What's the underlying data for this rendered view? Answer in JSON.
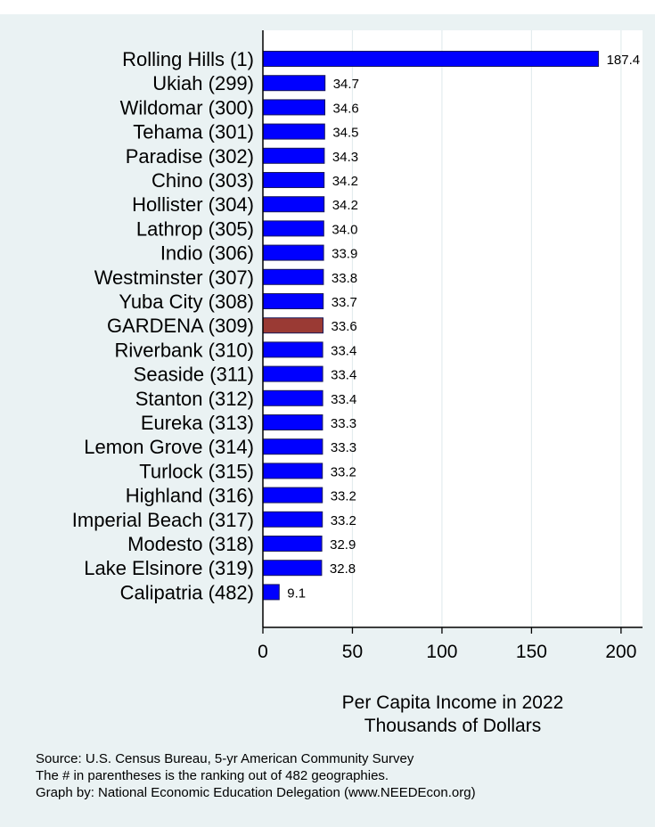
{
  "chart_data": {
    "type": "bar",
    "orientation": "horizontal",
    "categories": [
      "Rolling Hills  (1)",
      "Ukiah (299)",
      "Wildomar (300)",
      "Tehama (301)",
      "Paradise (302)",
      "Chino (303)",
      "Hollister (304)",
      "Lathrop (305)",
      "Indio (306)",
      "Westminster (307)",
      "Yuba City (308)",
      "GARDENA (309)",
      "Riverbank (310)",
      "Seaside (311)",
      "Stanton (312)",
      "Eureka (313)",
      "Lemon Grove (314)",
      "Turlock (315)",
      "Highland (316)",
      "Imperial Beach (317)",
      "Modesto (318)",
      "Lake Elsinore (319)",
      "Calipatria (482)"
    ],
    "values": [
      187.4,
      34.7,
      34.6,
      34.5,
      34.3,
      34.2,
      34.2,
      34.0,
      33.9,
      33.8,
      33.7,
      33.6,
      33.4,
      33.4,
      33.4,
      33.3,
      33.3,
      33.2,
      33.2,
      33.2,
      32.9,
      32.8,
      9.1
    ],
    "value_labels": [
      "187.4",
      "34.7",
      "34.6",
      "34.5",
      "34.3",
      "34.2",
      "34.2",
      "34.0",
      "33.9",
      "33.8",
      "33.7",
      "33.6",
      "33.4",
      "33.4",
      "33.4",
      "33.3",
      "33.3",
      "33.2",
      "33.2",
      "33.2",
      "32.9",
      "32.8",
      "9.1"
    ],
    "highlight_index": 11,
    "xticks": [
      0,
      50,
      100,
      150,
      200
    ],
    "xlim": [
      0,
      212
    ],
    "xlabel_lines": [
      "Per Capita Income in 2022",
      "Thousands of Dollars"
    ],
    "grid": true,
    "colors": {
      "bar": "#0000ff",
      "highlight": "#9a3a34",
      "bar_edge": "#1a1a5a",
      "plot_bg": "#ffffff",
      "grid": "#e3ecee",
      "frame_bg": "#eaf2f3"
    }
  },
  "footnotes": [
    "Source: U.S. Census Bureau, 5-yr American Community Survey",
    "The # in parentheses is the ranking out of 482 geographies.",
    "Graph by: National Economic Education Delegation (www.NEEDEcon.org)"
  ]
}
